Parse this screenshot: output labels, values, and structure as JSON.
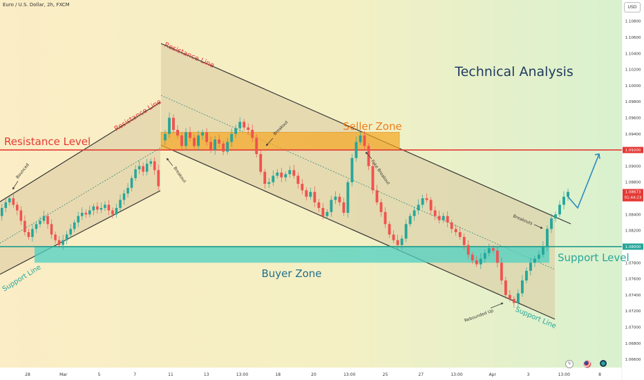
{
  "header": {
    "symbol_title": "Euro / U.S. Dollar, 2h, FXCM",
    "currency_button": "USD"
  },
  "chart_data": {
    "type": "candlestick",
    "title": "Technical Analysis",
    "y_axis": {
      "range": [
        1.06498,
        1.11063
      ],
      "ticks": [
        "1.10800",
        "1.10600",
        "1.10400",
        "1.10200",
        "1.10000",
        "1.09800",
        "1.09600",
        "1.09400",
        "1.09200",
        "1.09000",
        "1.08800",
        "1.08600",
        "1.08400",
        "1.08200",
        "1.08000",
        "1.07800",
        "1.07600",
        "1.07400",
        "1.07200",
        "1.07000",
        "1.06800",
        "1.06600"
      ]
    },
    "x_axis": {
      "ticks": [
        "28",
        "Mar",
        "5",
        "7",
        "11",
        "13",
        "13:00",
        "18",
        "20",
        "13:00",
        "25",
        "27",
        "13:00",
        "Apr",
        "3",
        "13:00",
        "8"
      ]
    },
    "levels": [
      {
        "label": "Resistance Level",
        "price_tag": "1.09200",
        "value": 1.092,
        "color": "#e53935"
      },
      {
        "label": "Support Level",
        "price_tag": "1.08000",
        "value": 1.08,
        "color": "#26a69a"
      }
    ],
    "last_price": {
      "value": "1.08673",
      "countdown": "01:44:23",
      "color": "#e53935"
    },
    "zones": [
      {
        "label": "Seller Zone",
        "low": 1.092,
        "high": 1.0942,
        "color": "#f5a623"
      },
      {
        "label": "Buyer Zone",
        "low": 1.078,
        "high": 1.08,
        "color": "#4dd0c1"
      }
    ],
    "annotations": {
      "resistance_line_1": "Resistance Line",
      "resistance_line_2": "Resistance Line",
      "support_line_1": "Support Line",
      "support_line_2": "Support Line",
      "bounced": "Bounced",
      "breakout_1": "Breakout",
      "breakout_2": "Breakout",
      "fake_breakout": "Fake Breakout",
      "breakouts": "Breakouts",
      "rebounded_up": "Rebounded Up"
    },
    "projection": [
      1.0862,
      1.0848,
      1.0915
    ],
    "series": {
      "segments": [
        {
          "pts": [
            1.0838,
            1.0848,
            1.0855,
            1.086,
            1.0852,
            1.0845,
            1.0832,
            1.0818,
            1.0812,
            1.0822,
            1.0828,
            1.0832,
            1.0838,
            1.0828,
            1.0815,
            1.0808,
            1.0802,
            1.0808,
            1.0815,
            1.0822,
            1.083,
            1.0838,
            1.0842,
            1.084,
            1.0845,
            1.085,
            1.0846,
            1.0848,
            1.0852,
            1.0845,
            1.084,
            1.0848,
            1.0858,
            1.0866,
            1.0873,
            1.0885,
            1.0896,
            1.09,
            1.0893,
            1.0903,
            1.0906,
            1.0895,
            1.0875
          ]
        },
        {
          "pts": [
            1.0932,
            1.094,
            1.096,
            1.0945,
            1.0938,
            1.0925,
            1.0942,
            1.0935,
            1.0925,
            1.0938,
            1.0942,
            1.093,
            1.092,
            1.0933,
            1.0928,
            1.0918,
            1.093,
            1.094,
            1.0947,
            1.0955,
            1.0948,
            1.0945,
            1.0935,
            1.0915,
            1.0893,
            1.0878,
            1.088,
            1.0888,
            1.0892,
            1.0886,
            1.089,
            1.0895,
            1.0888,
            1.0878,
            1.087,
            1.0862,
            1.0868,
            1.0855,
            1.0848,
            1.0838,
            1.0843,
            1.0858,
            1.0862,
            1.0855,
            1.0842,
            1.088,
            1.091,
            1.093,
            1.0938,
            1.0925,
            1.09,
            1.087,
            1.0855,
            1.0843,
            1.0828,
            1.0815,
            1.0808,
            1.0802,
            1.081,
            1.0828,
            1.0838,
            1.0845,
            1.0852,
            1.086,
            1.0858,
            1.0845,
            1.0838,
            1.0833,
            1.0838,
            1.083,
            1.0822,
            1.0818,
            1.0812,
            1.0802,
            1.079,
            1.0783,
            1.0778,
            1.0785,
            1.0792,
            1.0798,
            1.0795,
            1.078,
            1.0758,
            1.074,
            1.0735,
            1.073,
            1.0742,
            1.0758,
            1.077,
            1.078,
            1.0785,
            1.079,
            1.08,
            1.0822,
            1.0835,
            1.084,
            1.0852,
            1.0862,
            1.0868
          ]
        }
      ]
    }
  }
}
